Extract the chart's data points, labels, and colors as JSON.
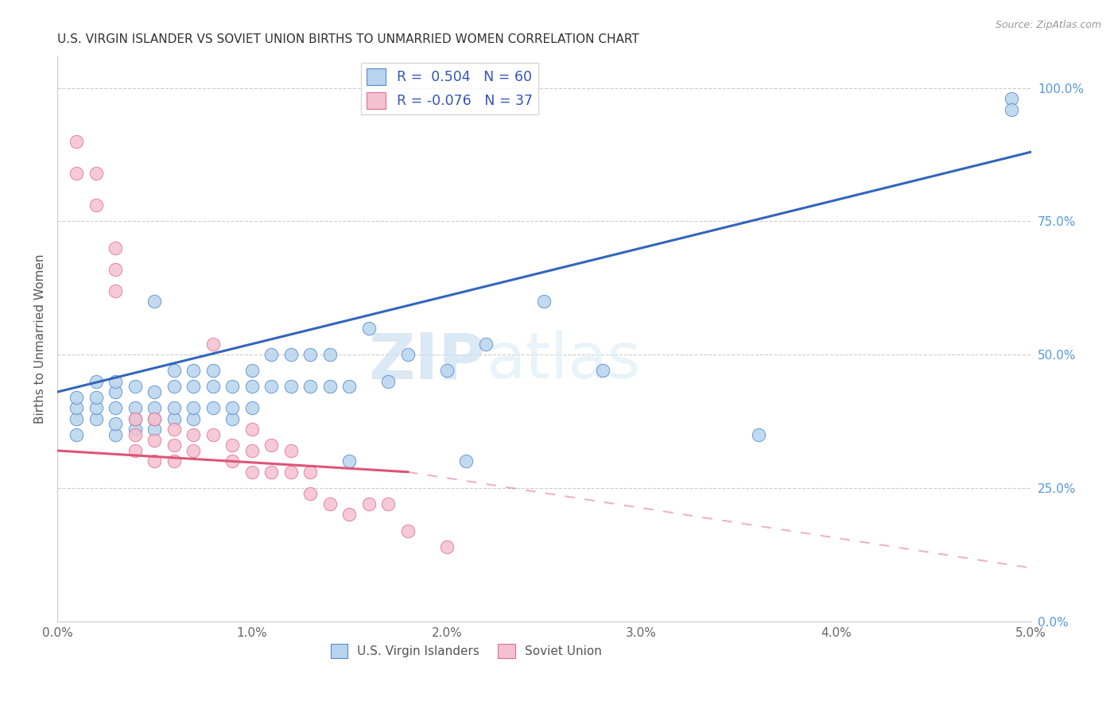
{
  "title": "U.S. VIRGIN ISLANDER VS SOVIET UNION BIRTHS TO UNMARRIED WOMEN CORRELATION CHART",
  "source": "Source: ZipAtlas.com",
  "ylabel": "Births to Unmarried Women",
  "watermark_zip": "ZIP",
  "watermark_atlas": "atlas",
  "legend_line1": "R =  0.504   N = 60",
  "legend_line2": "R = -0.076   N = 37",
  "blue_label": "U.S. Virgin Islanders",
  "pink_label": "Soviet Union",
  "xmin": 0.0,
  "xmax": 0.05,
  "ymin": 0.0,
  "ymax": 1.06,
  "ytick_vals": [
    0.0,
    0.25,
    0.5,
    0.75,
    1.0
  ],
  "ytick_labels": [
    "0.0%",
    "25.0%",
    "50.0%",
    "75.0%",
    "100.0%"
  ],
  "xtick_vals": [
    0.0,
    0.01,
    0.02,
    0.03,
    0.04,
    0.05
  ],
  "xtick_labels": [
    "0.0%",
    "1.0%",
    "2.0%",
    "3.0%",
    "4.0%",
    "5.0%"
  ],
  "blue_fill": "#b8d4ee",
  "blue_edge": "#5588cc",
  "pink_fill": "#f5c0d0",
  "pink_edge": "#e07090",
  "blue_line_col": "#3366bb",
  "pink_line_col": "#dd5577",
  "grid_color": "#cccccc",
  "right_axis_color": "#5599dd",
  "blue_trend": [
    0.0,
    0.05,
    0.43,
    0.88
  ],
  "pink_solid_trend": [
    0.0,
    0.018,
    0.32,
    0.28
  ],
  "pink_dash_trend": [
    0.018,
    0.05,
    0.28,
    0.1
  ],
  "blue_scatter_x": [
    0.001,
    0.001,
    0.001,
    0.001,
    0.002,
    0.002,
    0.002,
    0.002,
    0.003,
    0.003,
    0.003,
    0.003,
    0.003,
    0.004,
    0.004,
    0.004,
    0.004,
    0.005,
    0.005,
    0.005,
    0.005,
    0.005,
    0.006,
    0.006,
    0.006,
    0.006,
    0.007,
    0.007,
    0.007,
    0.007,
    0.008,
    0.008,
    0.008,
    0.009,
    0.009,
    0.009,
    0.01,
    0.01,
    0.01,
    0.011,
    0.011,
    0.012,
    0.012,
    0.013,
    0.013,
    0.014,
    0.014,
    0.015,
    0.015,
    0.016,
    0.017,
    0.018,
    0.02,
    0.021,
    0.022,
    0.025,
    0.028,
    0.036,
    0.049,
    0.049
  ],
  "blue_scatter_y": [
    0.38,
    0.4,
    0.35,
    0.42,
    0.38,
    0.4,
    0.42,
    0.45,
    0.35,
    0.37,
    0.4,
    0.43,
    0.45,
    0.36,
    0.38,
    0.4,
    0.44,
    0.36,
    0.38,
    0.4,
    0.43,
    0.6,
    0.38,
    0.4,
    0.44,
    0.47,
    0.38,
    0.4,
    0.44,
    0.47,
    0.4,
    0.44,
    0.47,
    0.38,
    0.4,
    0.44,
    0.4,
    0.44,
    0.47,
    0.44,
    0.5,
    0.44,
    0.5,
    0.44,
    0.5,
    0.44,
    0.5,
    0.44,
    0.3,
    0.55,
    0.45,
    0.5,
    0.47,
    0.3,
    0.52,
    0.6,
    0.47,
    0.35,
    0.98,
    0.96
  ],
  "pink_scatter_x": [
    0.001,
    0.001,
    0.002,
    0.002,
    0.003,
    0.003,
    0.003,
    0.004,
    0.004,
    0.004,
    0.005,
    0.005,
    0.005,
    0.006,
    0.006,
    0.006,
    0.007,
    0.007,
    0.008,
    0.008,
    0.009,
    0.009,
    0.01,
    0.01,
    0.01,
    0.011,
    0.011,
    0.012,
    0.012,
    0.013,
    0.013,
    0.014,
    0.015,
    0.016,
    0.017,
    0.018,
    0.02
  ],
  "pink_scatter_y": [
    0.84,
    0.9,
    0.78,
    0.84,
    0.62,
    0.66,
    0.7,
    0.32,
    0.35,
    0.38,
    0.3,
    0.34,
    0.38,
    0.3,
    0.33,
    0.36,
    0.32,
    0.35,
    0.35,
    0.52,
    0.3,
    0.33,
    0.28,
    0.32,
    0.36,
    0.28,
    0.33,
    0.28,
    0.32,
    0.24,
    0.28,
    0.22,
    0.2,
    0.22,
    0.22,
    0.17,
    0.14
  ]
}
